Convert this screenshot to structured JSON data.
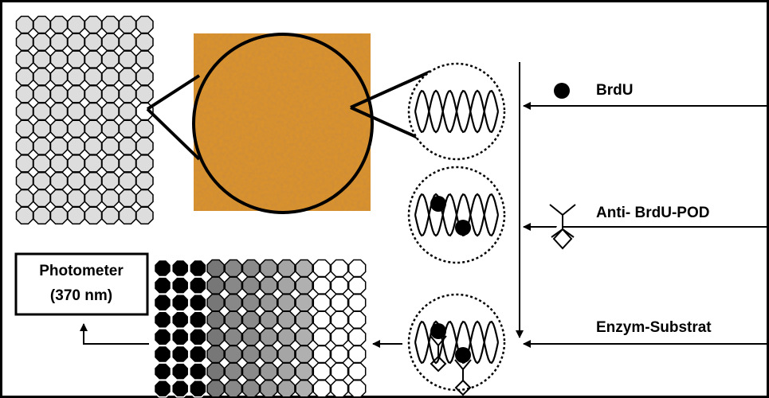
{
  "reagents": [
    {
      "label": "BrdU"
    },
    {
      "label": "Anti- BrdU-POD"
    },
    {
      "label": "Enzym-Substrat"
    }
  ],
  "photometer": {
    "lines": [
      "Photometer",
      "(370 nm)"
    ]
  }
}
